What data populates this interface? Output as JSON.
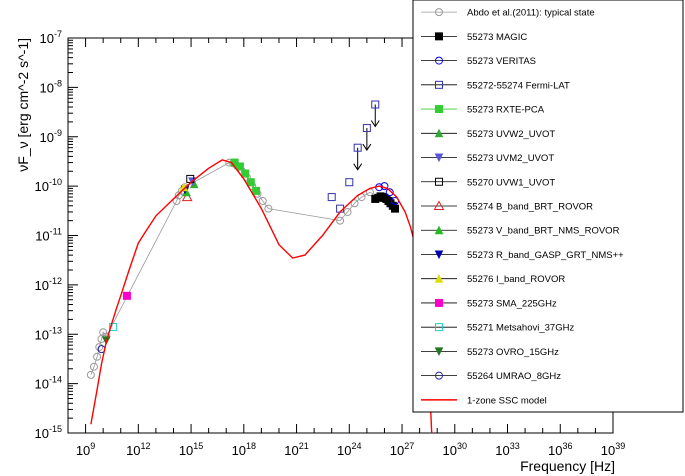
{
  "chart_data": {
    "type": "scatter",
    "xlabel": "Frequency [Hz]",
    "ylabel": "νF_ν [erg cm^-2 s^-1]",
    "x_scale": "log",
    "y_scale": "log",
    "xlim": [
      100000000.0,
      1e+39
    ],
    "ylim": [
      1e-15,
      1e-07
    ],
    "x_ticks": [
      {
        "value": 1000000000.0,
        "label": "10^9"
      },
      {
        "value": 1000000000000.0,
        "label": "10^12"
      },
      {
        "value": 1000000000000000.0,
        "label": "10^15"
      },
      {
        "value": 1e+18,
        "label": "10^18"
      },
      {
        "value": 1e+21,
        "label": "10^21"
      },
      {
        "value": 1e+24,
        "label": "10^24"
      },
      {
        "value": 1e+27,
        "label": "10^27"
      },
      {
        "value": 1e+30,
        "label": "10^30"
      },
      {
        "value": 1e+33,
        "label": "10^33"
      },
      {
        "value": 1e+36,
        "label": "10^36"
      },
      {
        "value": 1e+39,
        "label": "10^39"
      }
    ],
    "y_ticks": [
      {
        "value": 1e-15,
        "label": "10^-15"
      },
      {
        "value": 1e-14,
        "label": "10^-14"
      },
      {
        "value": 1e-13,
        "label": "10^-13"
      },
      {
        "value": 1e-12,
        "label": "10^-12"
      },
      {
        "value": 1e-11,
        "label": "10^-11"
      },
      {
        "value": 1e-10,
        "label": "10^-10"
      },
      {
        "value": 1e-09,
        "label": "10^-9"
      },
      {
        "value": 1e-08,
        "label": "10^-8"
      },
      {
        "value": 1e-07,
        "label": "10^-7"
      }
    ],
    "legend_position": "top-right",
    "series": [
      {
        "name": "Abdo et al.(2011): typical state",
        "color": "#999999",
        "marker": "circle-open",
        "line": true,
        "points": [
          [
            2000000000.0,
            1.5e-14
          ],
          [
            3000000000.0,
            2.2e-14
          ],
          [
            4500000000.0,
            3.5e-14
          ],
          [
            6000000000.0,
            5.5e-14
          ],
          [
            8000000000.0,
            8e-14
          ],
          [
            10000000000.0,
            1.1e-13
          ],
          [
            15000000000.0,
            9e-14
          ],
          [
            150000000000000.0,
            5e-11
          ],
          [
            200000000000000.0,
            6.5e-11
          ],
          [
            300000000000000.0,
            8e-11
          ],
          [
            450000000000000.0,
            9.5e-11
          ],
          [
            1.5e+17,
            3e-10
          ],
          [
            2.5e+17,
            2.9e-10
          ],
          [
            4e+17,
            2.6e-10
          ],
          [
            8e+17,
            2e-10
          ],
          [
            1.5e+18,
            1.5e-10
          ],
          [
            3e+18,
            1e-10
          ],
          [
            6e+18,
            7e-11
          ],
          [
            1.2e+19,
            5e-11
          ],
          [
            2.5e+19,
            3.5e-11
          ],
          [
            3e+23,
            2e-11
          ],
          [
            8e+23,
            3e-11
          ],
          [
            2e+24,
            4.5e-11
          ],
          [
            5e+24,
            6e-11
          ],
          [
            1.5e+25,
            7.5e-11
          ],
          [
            5e+25,
            6e-11
          ]
        ]
      },
      {
        "name": "55273 MAGIC",
        "color": "#000000",
        "marker": "square-filled",
        "line": false,
        "points": [
          [
            3e+25,
            5.5e-11
          ],
          [
            4.5e+25,
            5.8e-11
          ],
          [
            6e+25,
            6.2e-11
          ],
          [
            8e+25,
            6e-11
          ],
          [
            1e+26,
            5.8e-11
          ],
          [
            1.3e+26,
            5.5e-11
          ],
          [
            1.7e+26,
            5e-11
          ],
          [
            2.2e+26,
            4.5e-11
          ],
          [
            3e+26,
            4e-11
          ],
          [
            4e+26,
            3.5e-11
          ]
        ]
      },
      {
        "name": "55273 VERITAS",
        "color": "#0000ff",
        "marker": "circle-open",
        "line": false,
        "points": [
          [
            5e+25,
            9.5e-11
          ],
          [
            1e+26,
            1e-10
          ],
          [
            2e+26,
            7.5e-11
          ],
          [
            4e+26,
            5e-11
          ]
        ]
      },
      {
        "name": "55272-55274 Fermi-LAT",
        "color": "#3333aa",
        "marker": "square-open",
        "line": false,
        "points": [
          [
            1e+23,
            6e-11
          ],
          [
            3e+23,
            3.5e-11
          ],
          [
            1e+24,
            1.2e-10
          ]
        ],
        "upper_limits": [
          [
            3e+24,
            6e-10
          ],
          [
            1e+25,
            1.5e-09
          ],
          [
            3e+25,
            4.5e-09
          ]
        ]
      },
      {
        "name": "55273 RXTE-PCA",
        "color": "#33cc33",
        "marker": "square-filled",
        "line": true,
        "points": [
          [
            3e+17,
            3e-10
          ],
          [
            6e+17,
            2.5e-10
          ],
          [
            1.2e+18,
            1.8e-10
          ],
          [
            2.5e+18,
            1.2e-10
          ],
          [
            5e+18,
            8e-11
          ]
        ]
      },
      {
        "name": "55273 UVW2_UVOT",
        "color": "#33aa33",
        "marker": "triangle-up",
        "line": false,
        "points": [
          [
            1500000000000000.0,
            1.1e-10
          ]
        ]
      },
      {
        "name": "55273 UVM2_UVOT",
        "color": "#5555dd",
        "marker": "triangle-down",
        "line": false,
        "points": [
          [
            1200000000000000.0,
            1.25e-10
          ]
        ]
      },
      {
        "name": "55270 UVW1_UVOT",
        "color": "#000000",
        "marker": "square-open",
        "line": false,
        "points": [
          [
            900000000000000.0,
            1.4e-10
          ]
        ]
      },
      {
        "name": "55274 B_band_BRT_ROVOR",
        "color": "#dd2222",
        "marker": "triangle-open",
        "line": false,
        "points": [
          [
            600000000000000.0,
            6e-11
          ]
        ]
      },
      {
        "name": "55273 V_band_BRT_NMS_ROVOR",
        "color": "#22bb22",
        "marker": "triangle-up",
        "line": false,
        "points": [
          [
            550000000000000.0,
            7.5e-11
          ]
        ]
      },
      {
        "name": "55273 R_band_GASP_GRT_NMS++",
        "color": "#0000aa",
        "marker": "triangle-down",
        "line": false,
        "points": [
          [
            450000000000000.0,
            8.5e-11
          ]
        ]
      },
      {
        "name": "55276 I_band_ROVOR",
        "color": "#dddd00",
        "marker": "triangle-up",
        "line": false,
        "points": [
          [
            380000000000000.0,
            9.5e-11
          ]
        ]
      },
      {
        "name": "55273 SMA_225GHz",
        "color": "#ff00cc",
        "marker": "square-filled",
        "line": false,
        "points": [
          [
            225000000000.0,
            6e-13
          ]
        ]
      },
      {
        "name": "55271 Metsahovi_37GHz",
        "color": "#22cccc",
        "marker": "square-open",
        "line": false,
        "points": [
          [
            37000000000.0,
            1.4e-13
          ]
        ]
      },
      {
        "name": "55273 OVRO_15GHz",
        "color": "#227722",
        "marker": "triangle-down",
        "line": false,
        "points": [
          [
            15000000000.0,
            7.5e-14
          ]
        ]
      },
      {
        "name": "55264 UMRAO_8GHz",
        "color": "#2222aa",
        "marker": "circle-open",
        "line": false,
        "points": [
          [
            8000000000.0,
            5e-14
          ]
        ]
      },
      {
        "name": "1-zone SSC model",
        "color": "#ff0000",
        "marker": "none",
        "line": true,
        "points": [
          [
            2000000000.0,
            1.5e-15
          ],
          [
            4000000000.0,
            6e-15
          ],
          [
            8000000000.0,
            2.5e-14
          ],
          [
            15000000000.0,
            7e-14
          ],
          [
            30000000000.0,
            1.6e-13
          ],
          [
            60000000000.0,
            3.5e-13
          ],
          [
            100000000000.0,
            6e-13
          ],
          [
            300000000000.0,
            2e-12
          ],
          [
            1000000000000.0,
            7e-12
          ],
          [
            3000000000000.0,
            1.3e-11
          ],
          [
            10000000000000.0,
            2.5e-11
          ],
          [
            100000000000000.0,
            5.5e-11
          ],
          [
            1000000000000000.0,
            1.2e-10
          ],
          [
            1e+16,
            2.3e-10
          ],
          [
            6e+16,
            3.4e-10
          ],
          [
            2e+17,
            3e-10
          ],
          [
            1e+18,
            1.4e-10
          ],
          [
            1e+19,
            3.5e-11
          ],
          [
            1e+20,
            6.5e-12
          ],
          [
            6e+20,
            3.5e-12
          ],
          [
            3e+21,
            4e-12
          ],
          [
            3e+22,
            1e-11
          ],
          [
            3e+23,
            3e-11
          ],
          [
            3e+24,
            6.5e-11
          ],
          [
            1.5e+25,
            9e-11
          ],
          [
            5e+25,
            1e-10
          ],
          [
            1.5e+26,
            9e-11
          ],
          [
            5e+26,
            6e-11
          ],
          [
            1.5e+27,
            3e-11
          ],
          [
            3e+27,
            1.5e-11
          ],
          [
            8e+27,
            4e-12
          ],
          [
            1.5e+28,
            8e-13
          ],
          [
            2.5e+28,
            1e-13
          ],
          [
            4e+28,
            5e-15
          ],
          [
            5e+28,
            8e-16
          ]
        ]
      }
    ]
  }
}
